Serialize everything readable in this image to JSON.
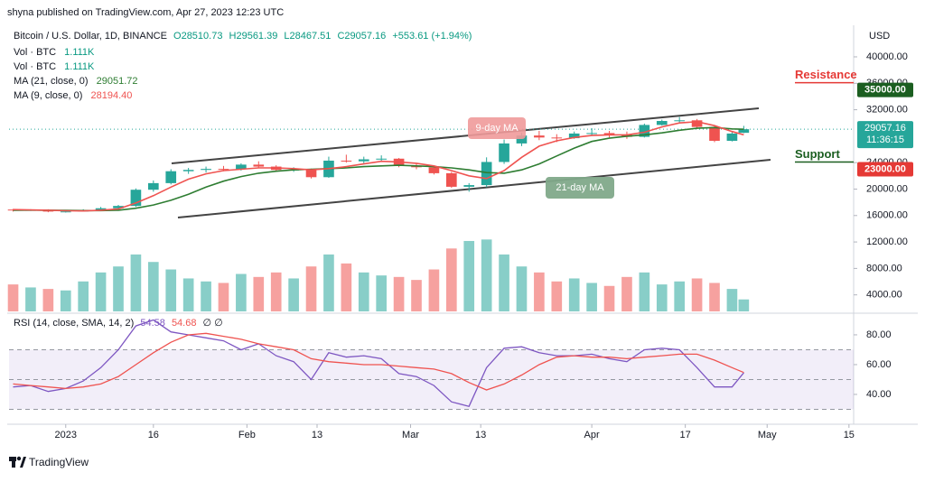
{
  "header": {
    "publisher": "shyna published on TradingView.com, Apr 27, 2023 12:23 UTC"
  },
  "footer": {
    "brand": "TradingView"
  },
  "chart_data": [
    {
      "type": "candlestick",
      "symbol": "Bitcoin / U.S. Dollar, 1D, BINANCE",
      "ohlc_text": [
        "O28510.73",
        "H29561.39",
        "L28467.51",
        "C29057.16",
        "+553.61 (+1.94%)"
      ],
      "volume_legend": [
        {
          "label": "Vol · BTC",
          "value": "1.111K"
        },
        {
          "label": "Vol · BTC",
          "value": "1.111K"
        }
      ],
      "currency": "USD",
      "x": [
        -9,
        -6,
        -3,
        0,
        3,
        6,
        9,
        12,
        15,
        18,
        21,
        24,
        27,
        30,
        33,
        36,
        39,
        42,
        45,
        48,
        51,
        54,
        57,
        60,
        63,
        66,
        69,
        72,
        75,
        78,
        81,
        84,
        87,
        90,
        93,
        96,
        99,
        102,
        105,
        108,
        111,
        114,
        116
      ],
      "open": [
        16900,
        16800,
        16850,
        16600,
        16620,
        16850,
        17100,
        17450,
        19900,
        20900,
        22700,
        22900,
        23050,
        23000,
        23700,
        23400,
        22900,
        22950,
        21800,
        24300,
        24200,
        24500,
        24600,
        23500,
        23300,
        22400,
        20350,
        20600,
        24100,
        26900,
        28100,
        27800,
        27700,
        28400,
        28470,
        28200,
        27900,
        29700,
        30300,
        30400,
        29400,
        27300,
        28510.73
      ],
      "high": [
        17000,
        16950,
        16950,
        16800,
        16950,
        17300,
        17600,
        20100,
        21300,
        23000,
        23200,
        23400,
        23500,
        23900,
        24200,
        23600,
        23300,
        23100,
        24900,
        25200,
        24900,
        25100,
        24700,
        23900,
        23500,
        22600,
        20900,
        24800,
        27500,
        28500,
        28800,
        28300,
        28700,
        29200,
        28800,
        28700,
        29900,
        30500,
        30900,
        30600,
        29500,
        28700,
        29561.39
      ],
      "low": [
        16600,
        16700,
        16500,
        16450,
        16600,
        16800,
        17000,
        17300,
        19600,
        20700,
        22300,
        22500,
        22700,
        22800,
        23200,
        22700,
        22600,
        21600,
        21700,
        24000,
        23900,
        24200,
        23300,
        23000,
        22200,
        20200,
        19600,
        20300,
        23800,
        26500,
        27400,
        27100,
        27600,
        28100,
        27800,
        27600,
        27800,
        29600,
        30100,
        29200,
        27100,
        27200,
        28467.51
      ],
      "close": [
        16800,
        16850,
        16600,
        16620,
        16850,
        17100,
        17450,
        19900,
        20900,
        22700,
        22900,
        23050,
        23000,
        23700,
        23400,
        22900,
        22950,
        21800,
        24300,
        24200,
        24500,
        24600,
        23500,
        23300,
        22400,
        20350,
        20600,
        24100,
        26900,
        28100,
        27800,
        27700,
        28400,
        28470,
        28200,
        27900,
        29700,
        30300,
        30400,
        29400,
        27300,
        28400,
        29057.16
      ],
      "up_color": "#26a69a",
      "down_color": "#ef5350",
      "series": [
        {
          "name": "MA (21, close, 0)",
          "value_label": "29051.72",
          "color": "#2e7d32",
          "values": [
            16800,
            16820,
            16800,
            16780,
            16750,
            16750,
            16800,
            17100,
            17600,
            18300,
            19200,
            20300,
            21200,
            21900,
            22400,
            22700,
            22900,
            23000,
            23100,
            23200,
            23400,
            23500,
            23600,
            23500,
            23400,
            23200,
            22900,
            22500,
            22400,
            22900,
            23800,
            25000,
            26200,
            27200,
            27700,
            28000,
            28200,
            28500,
            28900,
            29200,
            29300,
            29100,
            29051.72
          ]
        },
        {
          "name": "MA (9, close, 0)",
          "value_label": "28194.40",
          "color": "#ef5350",
          "values": [
            16900,
            16850,
            16800,
            16720,
            16700,
            16800,
            17000,
            17900,
            19000,
            20300,
            21500,
            22300,
            22800,
            23000,
            23200,
            23200,
            23100,
            22900,
            23100,
            23400,
            23800,
            24200,
            24100,
            23900,
            23500,
            22800,
            22000,
            21600,
            22800,
            24800,
            26500,
            27300,
            27800,
            28100,
            28200,
            28200,
            28600,
            29400,
            30000,
            30200,
            29600,
            28700,
            28194.4
          ]
        }
      ],
      "volume": [
        180,
        160,
        150,
        140,
        200,
        260,
        300,
        380,
        330,
        280,
        220,
        200,
        190,
        250,
        230,
        260,
        220,
        300,
        380,
        320,
        260,
        240,
        230,
        210,
        280,
        420,
        470,
        480,
        380,
        300,
        260,
        200,
        220,
        190,
        170,
        230,
        260,
        180,
        200,
        220,
        190,
        150,
        80
      ],
      "volume_lim": [
        0,
        500
      ],
      "xlim": [
        -9.7,
        134.8
      ],
      "xticks": [
        {
          "value": 0,
          "label": "2023"
        },
        {
          "value": 15,
          "label": "16"
        },
        {
          "value": 31,
          "label": "Feb"
        },
        {
          "value": 43,
          "label": "13"
        },
        {
          "value": 59,
          "label": "Mar"
        },
        {
          "value": 71,
          "label": "13"
        },
        {
          "value": 90,
          "label": "Apr"
        },
        {
          "value": 106,
          "label": "17"
        },
        {
          "value": 120,
          "label": "May"
        },
        {
          "value": 134,
          "label": "15"
        }
      ],
      "ylim": [
        1500,
        44500
      ],
      "yticks": [
        {
          "value": 40000,
          "label": "40000.00"
        },
        {
          "value": 36000,
          "label": "36000.00"
        },
        {
          "value": 32000,
          "label": "32000.00"
        },
        {
          "value": 24000,
          "label": "24000.00"
        },
        {
          "value": 20000,
          "label": "20000.00"
        },
        {
          "value": 16000,
          "label": "16000.00"
        },
        {
          "value": 12000,
          "label": "12000.00"
        },
        {
          "value": 8000,
          "label": "8000.00"
        },
        {
          "value": 4000,
          "label": "4000.00"
        }
      ],
      "levels": [
        {
          "name": "Resistance",
          "value": 35000,
          "label": "35000.00",
          "color": "#1b5e20",
          "text_color": "#e53935"
        },
        {
          "name": "Support",
          "value": 23000,
          "label": "23000.00",
          "color": "#e53935",
          "text_color": "#1b5e20"
        }
      ],
      "last_price": {
        "value": 29057.16,
        "label": "29057.16",
        "countdown": "11:36:15"
      },
      "annotations": [
        "9-day MA",
        "21-day MA"
      ]
    },
    {
      "type": "line",
      "title": "RSI (14, close, SMA, 14, 2)",
      "legend_values": [
        "54.58",
        "54.68",
        "∅ ∅"
      ],
      "series": [
        {
          "name": "RSI",
          "color": "#7e57c2",
          "values": [
            45,
            46,
            42,
            44,
            49,
            58,
            70,
            86,
            90,
            82,
            80,
            78,
            76,
            70,
            74,
            66,
            62,
            50,
            68,
            65,
            66,
            64,
            54,
            52,
            46,
            35,
            32,
            58,
            71,
            72,
            68,
            66,
            66,
            67,
            64,
            62,
            70,
            71,
            70,
            58,
            45,
            45,
            54.58
          ]
        },
        {
          "name": "SMA",
          "color": "#ef5350",
          "values": [
            47,
            46,
            45,
            44,
            45,
            47,
            52,
            60,
            68,
            75,
            80,
            81,
            79,
            77,
            74,
            72,
            70,
            64,
            62,
            61,
            60,
            60,
            59,
            58,
            57,
            54,
            48,
            43,
            47,
            53,
            60,
            65,
            66,
            65,
            65,
            64,
            65,
            66,
            67,
            67,
            63,
            58,
            54.68
          ]
        }
      ],
      "ylim": [
        23,
        92.7
      ],
      "yticks": [
        {
          "value": 80,
          "label": "80.00"
        },
        {
          "value": 60,
          "label": "60.00"
        },
        {
          "value": 40,
          "label": "40.00"
        }
      ],
      "band": [
        30,
        70
      ],
      "levels": [
        30,
        50,
        70
      ],
      "band_color": "#7e57c2"
    }
  ]
}
